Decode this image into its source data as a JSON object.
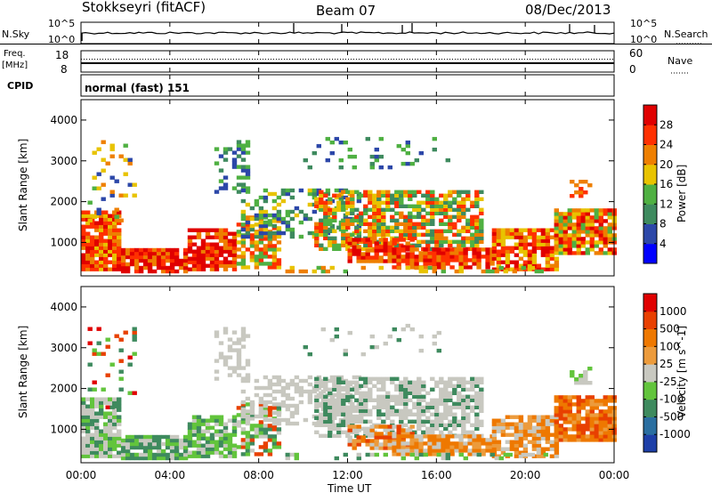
{
  "header": {
    "site": "Stokkseyri (fitACF)",
    "beam": "Beam 07",
    "date": "08/Dec/2013"
  },
  "noise_panel": {
    "left_label": "N.Sky",
    "right_label": "N.Search",
    "scale_top": "10^5",
    "scale_bottom": "10^0"
  },
  "freq_panel": {
    "left_label_1": "Freq.",
    "left_label_2": "[MHz]",
    "left_top": "18",
    "left_bottom": "8",
    "right_label": "Nave",
    "right_top": "60",
    "right_bottom": "0"
  },
  "cpid_panel": {
    "label": "CPID",
    "value": "normal (fast) 151"
  },
  "chart_data": [
    {
      "type": "heatmap",
      "title": "Power",
      "ylabel": "Slant Range [km]",
      "ylim": [
        180,
        4500
      ],
      "y_ticks": [
        "1000",
        "2000",
        "3000",
        "4000"
      ],
      "colorbar_label": "Power [dB]",
      "colorbar_ticks": [
        "4",
        "8",
        "12",
        "16",
        "20",
        "24",
        "28"
      ],
      "colorbar_colors": [
        "#0000ff",
        "#2c47a8",
        "#3e8a5e",
        "#4fb042",
        "#e8c300",
        "#ee7f00",
        "#ff3000",
        "#e00000"
      ]
    },
    {
      "type": "heatmap",
      "title": "Velocity",
      "ylabel": "Slant Range [km]",
      "ylim": [
        180,
        4500
      ],
      "y_ticks": [
        "1000",
        "2000",
        "3000",
        "4000"
      ],
      "colorbar_label": "Velocity [m s^-1]",
      "colorbar_ticks": [
        "1000",
        "500",
        "100",
        "25",
        "-25",
        "-100",
        "-500",
        "-1000"
      ],
      "colorbar_colors": [
        "#1d3fa8",
        "#2a6ea0",
        "#3e8a5e",
        "#62c43c",
        "#c8c8c0",
        "#ec9b3c",
        "#ee7800",
        "#e84000",
        "#e00000"
      ]
    }
  ],
  "x_axis": {
    "ticks": [
      "00:00",
      "04:00",
      "08:00",
      "12:00",
      "16:00",
      "20:00",
      "00:00"
    ],
    "label": "Time UT"
  }
}
